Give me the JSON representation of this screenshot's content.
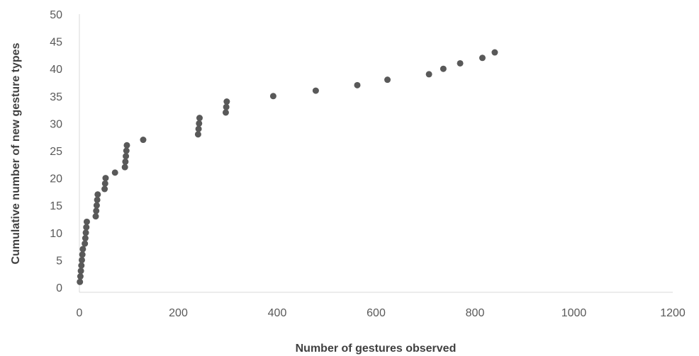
{
  "chart_data": {
    "type": "scatter",
    "title": "",
    "xlabel": "Number of gestures observed",
    "ylabel": "Cumulative number of new gesture types",
    "xlim": [
      0,
      1200
    ],
    "ylim": [
      0,
      50
    ],
    "xticks": [
      0,
      200,
      400,
      600,
      800,
      1000,
      1200
    ],
    "yticks": [
      0,
      5,
      10,
      15,
      20,
      25,
      30,
      35,
      40,
      45,
      50
    ],
    "grid": false,
    "legend": "none",
    "marker_color": "#595959",
    "series": [
      {
        "points": [
          [
            1,
            1
          ],
          [
            2,
            2
          ],
          [
            3,
            3
          ],
          [
            4,
            4
          ],
          [
            5,
            5
          ],
          [
            6,
            6
          ],
          [
            7,
            7
          ],
          [
            11,
            8
          ],
          [
            12,
            9
          ],
          [
            13,
            10
          ],
          [
            14,
            11
          ],
          [
            15,
            12
          ],
          [
            33,
            13
          ],
          [
            34,
            14
          ],
          [
            35,
            15
          ],
          [
            36,
            16
          ],
          [
            37,
            17
          ],
          [
            51,
            18
          ],
          [
            52,
            19
          ],
          [
            53,
            20
          ],
          [
            72,
            21
          ],
          [
            92,
            22
          ],
          [
            93,
            23
          ],
          [
            94,
            24
          ],
          [
            95,
            25
          ],
          [
            96,
            26
          ],
          [
            129,
            27
          ],
          [
            240,
            28
          ],
          [
            241,
            29
          ],
          [
            242,
            30
          ],
          [
            243,
            31
          ],
          [
            296,
            32
          ],
          [
            297,
            33
          ],
          [
            298,
            34
          ],
          [
            392,
            35
          ],
          [
            478,
            36
          ],
          [
            562,
            37
          ],
          [
            623,
            38
          ],
          [
            707,
            39
          ],
          [
            736,
            40
          ],
          [
            770,
            41
          ],
          [
            815,
            42
          ],
          [
            840,
            43
          ]
        ]
      }
    ]
  }
}
